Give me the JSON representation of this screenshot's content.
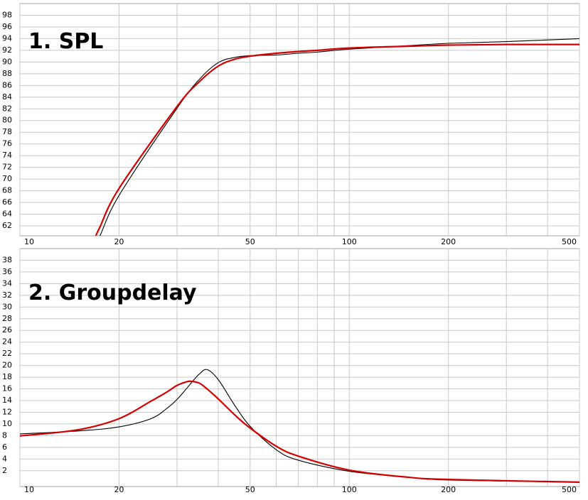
{
  "chart_data": [
    {
      "type": "line",
      "title": "1. SPL",
      "xscale": "log",
      "grid": true,
      "xlim": [
        10,
        500
      ],
      "xticks": [
        10,
        20,
        50,
        100,
        200,
        500
      ],
      "xminor": [
        30,
        40,
        60,
        70,
        80,
        90,
        300,
        400
      ],
      "ylim": [
        60.3,
        100
      ],
      "yticks": [
        62,
        64,
        66,
        68,
        70,
        72,
        74,
        76,
        78,
        80,
        82,
        84,
        86,
        88,
        90,
        92,
        94,
        96,
        98
      ],
      "x": [
        17,
        17.5,
        20,
        30,
        35,
        40,
        45,
        50,
        60,
        70,
        80,
        100,
        150,
        200,
        300,
        500
      ],
      "series": [
        {
          "color": "#000000",
          "values": [
            59.5,
            60.3,
            67.2,
            82.1,
            87.0,
            89.9,
            90.8,
            91.1,
            91.2,
            91.5,
            91.7,
            92.2,
            92.8,
            93.2,
            93.5,
            94.0
          ]
        },
        {
          "color": "#d40000",
          "values": [
            60.3,
            61.8,
            68.4,
            82.4,
            86.6,
            89.3,
            90.5,
            91.0,
            91.5,
            91.8,
            92.0,
            92.4,
            92.7,
            92.9,
            93.0,
            93.0
          ]
        }
      ]
    },
    {
      "type": "line",
      "title": "2. Groupdelay",
      "xscale": "log",
      "grid": true,
      "xlim": [
        10,
        500
      ],
      "xticks": [
        10,
        20,
        50,
        100,
        200,
        500
      ],
      "xminor": [
        30,
        40,
        60,
        70,
        80,
        90,
        300,
        400
      ],
      "ylim": [
        -0.7,
        40
      ],
      "yticks": [
        2,
        4,
        6,
        8,
        10,
        12,
        14,
        16,
        18,
        20,
        22,
        24,
        26,
        28,
        30,
        32,
        34,
        36,
        38
      ],
      "x": [
        10,
        15,
        20,
        25,
        28,
        30,
        32,
        33,
        35,
        37,
        40,
        45,
        50,
        60,
        70,
        100,
        150,
        200,
        500
      ],
      "series": [
        {
          "color": "#000000",
          "values": [
            8.3,
            8.8,
            9.5,
            10.9,
            12.7,
            14.2,
            16.0,
            16.9,
            18.5,
            19.3,
            17.6,
            13.1,
            9.6,
            5.6,
            3.8,
            1.9,
            0.9,
            0.4,
            0.05
          ]
        },
        {
          "color": "#d40000",
          "values": [
            7.95,
            9.0,
            10.9,
            13.9,
            15.5,
            16.6,
            17.2,
            17.3,
            17.0,
            16.0,
            14.3,
            11.5,
            9.3,
            6.2,
            4.5,
            2.1,
            0.9,
            0.5,
            0.04
          ]
        }
      ]
    }
  ]
}
